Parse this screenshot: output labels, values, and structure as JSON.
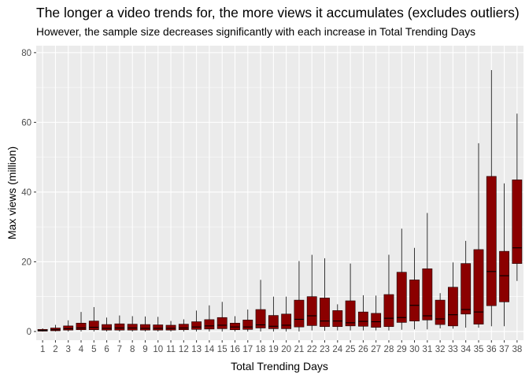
{
  "chart_data": {
    "type": "boxplot",
    "title": "The longer a video trends for, the more views it accumulates (excludes outliers)",
    "subtitle": "However, the sample size decreases significantly with each increase in Total Trending Days",
    "xlabel": "Total Trending Days",
    "ylabel": "Max views (million)",
    "ylim": [
      -2.5,
      82
    ],
    "y_ticks": [
      0,
      20,
      40,
      60,
      80
    ],
    "grid": true,
    "box_fill": "#8b0000",
    "box_stroke": "#1a0000",
    "panel_background": "#ebebeb",
    "grid_color": "#ffffff",
    "categories": [
      "1",
      "2",
      "3",
      "4",
      "5",
      "6",
      "7",
      "8",
      "9",
      "10",
      "11",
      "12",
      "13",
      "14",
      "15",
      "16",
      "17",
      "18",
      "19",
      "20",
      "21",
      "22",
      "23",
      "24",
      "25",
      "26",
      "27",
      "28",
      "29",
      "30",
      "31",
      "32",
      "33",
      "34",
      "35",
      "36",
      "37",
      "38"
    ],
    "boxes": [
      {
        "whisker_low": 0,
        "q1": 0.1,
        "median": 0.3,
        "q3": 0.6,
        "whisker_high": 0.9
      },
      {
        "whisker_low": 0,
        "q1": 0.2,
        "median": 0.5,
        "q3": 1.0,
        "whisker_high": 1.9
      },
      {
        "whisker_low": 0,
        "q1": 0.4,
        "median": 0.8,
        "q3": 1.6,
        "whisker_high": 3.2
      },
      {
        "whisker_low": 0,
        "q1": 0.5,
        "median": 1.0,
        "q3": 2.4,
        "whisker_high": 5.6
      },
      {
        "whisker_low": 0,
        "q1": 0.5,
        "median": 1.2,
        "q3": 3.0,
        "whisker_high": 7.0
      },
      {
        "whisker_low": 0,
        "q1": 0.4,
        "median": 0.9,
        "q3": 2.0,
        "whisker_high": 4.0
      },
      {
        "whisker_low": 0,
        "q1": 0.4,
        "median": 1.0,
        "q3": 2.2,
        "whisker_high": 4.6
      },
      {
        "whisker_low": 0,
        "q1": 0.4,
        "median": 1.0,
        "q3": 2.1,
        "whisker_high": 4.4
      },
      {
        "whisker_low": 0,
        "q1": 0.4,
        "median": 0.9,
        "q3": 2.0,
        "whisker_high": 4.3
      },
      {
        "whisker_low": 0,
        "q1": 0.4,
        "median": 0.9,
        "q3": 1.9,
        "whisker_high": 4.2
      },
      {
        "whisker_low": 0,
        "q1": 0.4,
        "median": 0.9,
        "q3": 1.8,
        "whisker_high": 3.0
      },
      {
        "whisker_low": 0,
        "q1": 0.5,
        "median": 1.0,
        "q3": 2.1,
        "whisker_high": 3.5
      },
      {
        "whisker_low": 0,
        "q1": 0.6,
        "median": 1.3,
        "q3": 2.8,
        "whisker_high": 6.0
      },
      {
        "whisker_low": 0,
        "q1": 0.7,
        "median": 1.6,
        "q3": 3.4,
        "whisker_high": 7.5
      },
      {
        "whisker_low": 0,
        "q1": 0.8,
        "median": 1.8,
        "q3": 4.0,
        "whisker_high": 8.5
      },
      {
        "whisker_low": 0,
        "q1": 0.5,
        "median": 1.3,
        "q3": 2.4,
        "whisker_high": 4.4
      },
      {
        "whisker_low": 0,
        "q1": 0.6,
        "median": 1.3,
        "q3": 3.3,
        "whisker_high": 6.3
      },
      {
        "whisker_low": 0,
        "q1": 1.0,
        "median": 1.9,
        "q3": 6.3,
        "whisker_high": 14.8
      },
      {
        "whisker_low": 0,
        "q1": 0.8,
        "median": 1.5,
        "q3": 4.6,
        "whisker_high": 10.0
      },
      {
        "whisker_low": 0,
        "q1": 0.8,
        "median": 1.8,
        "q3": 5.0,
        "whisker_high": 10.0
      },
      {
        "whisker_low": 0,
        "q1": 1.3,
        "median": 3.5,
        "q3": 9.0,
        "whisker_high": 20.2
      },
      {
        "whisker_low": 0.3,
        "q1": 1.7,
        "median": 4.5,
        "q3": 10.0,
        "whisker_high": 22.0
      },
      {
        "whisker_low": 0.2,
        "q1": 1.4,
        "median": 3.0,
        "q3": 9.6,
        "whisker_high": 21.0
      },
      {
        "whisker_low": 0.3,
        "q1": 1.4,
        "median": 3.0,
        "q3": 6.0,
        "whisker_high": 7.8
      },
      {
        "whisker_low": 0.3,
        "q1": 1.6,
        "median": 2.5,
        "q3": 8.8,
        "whisker_high": 19.5
      },
      {
        "whisker_low": 0.3,
        "q1": 1.5,
        "median": 2.9,
        "q3": 5.6,
        "whisker_high": 10.4
      },
      {
        "whisker_low": 0.3,
        "q1": 1.2,
        "median": 2.8,
        "q3": 5.2,
        "whisker_high": 10.3
      },
      {
        "whisker_low": 0.3,
        "q1": 1.4,
        "median": 3.8,
        "q3": 10.6,
        "whisker_high": 22.0
      },
      {
        "whisker_low": 0.5,
        "q1": 2.6,
        "median": 4.0,
        "q3": 17.0,
        "whisker_high": 29.5
      },
      {
        "whisker_low": 0.6,
        "q1": 3.0,
        "median": 7.5,
        "q3": 14.8,
        "whisker_high": 24.0
      },
      {
        "whisker_low": 0.6,
        "q1": 3.3,
        "median": 4.5,
        "q3": 18.0,
        "whisker_high": 34.0
      },
      {
        "whisker_low": 0.9,
        "q1": 2.0,
        "median": 3.6,
        "q3": 9.0,
        "whisker_high": 11.0
      },
      {
        "whisker_low": 0.8,
        "q1": 1.6,
        "median": 4.8,
        "q3": 12.7,
        "whisker_high": 19.8
      },
      {
        "whisker_low": 1.1,
        "q1": 5.0,
        "median": 6.3,
        "q3": 19.5,
        "whisker_high": 26.0
      },
      {
        "whisker_low": 1.1,
        "q1": 2.1,
        "median": 5.6,
        "q3": 23.5,
        "whisker_high": 54.0
      },
      {
        "whisker_low": 1.5,
        "q1": 7.4,
        "median": 17.2,
        "q3": 44.5,
        "whisker_high": 75.0
      },
      {
        "whisker_low": 1.5,
        "q1": 8.5,
        "median": 16.0,
        "q3": 23.0,
        "whisker_high": 42.5
      },
      {
        "whisker_low": 14.5,
        "q1": 19.5,
        "median": 24.0,
        "q3": 43.5,
        "whisker_high": 62.5
      }
    ]
  }
}
